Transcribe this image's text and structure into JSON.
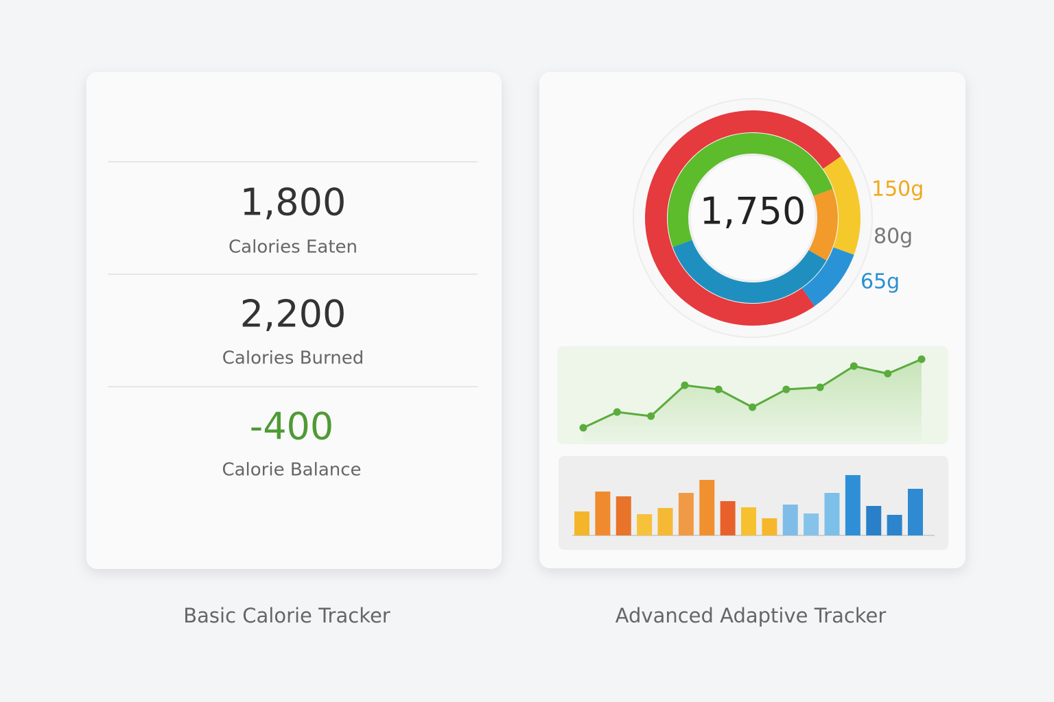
{
  "basic": {
    "stats": [
      {
        "value": "1,800",
        "label": "Calories Eaten"
      },
      {
        "value": "2,200",
        "label": "Calories Burned"
      },
      {
        "value": "-400",
        "label": "Calorie Balance"
      }
    ],
    "caption": "Basic Calorie Tracker"
  },
  "advanced": {
    "ring": {
      "center": "1,750",
      "labels": [
        "150g",
        "80g",
        "65g"
      ]
    },
    "line_chart": {
      "type": "line",
      "color": "#5aac3c",
      "values": [
        24,
        47,
        41,
        86,
        80,
        54,
        80,
        83,
        114,
        103,
        124
      ],
      "ylim": [
        0,
        143
      ]
    },
    "bar_chart": {
      "type": "bar",
      "values": [
        35,
        64,
        57,
        31,
        40,
        62,
        81,
        50,
        41,
        25,
        45,
        32,
        62,
        88,
        43,
        30,
        68
      ],
      "colors": [
        "#f5b52a",
        "#f08a2e",
        "#e8732a",
        "#f7c23a",
        "#f5b935",
        "#f09a45",
        "#f0902f",
        "#e8612a",
        "#f7c02f",
        "#f7b72a",
        "#7fbde8",
        "#86c3ea",
        "#7cc0ea",
        "#2f8fd6",
        "#2a80c8",
        "#2c84cc",
        "#2f8ad2"
      ],
      "ylim": [
        0,
        116
      ]
    },
    "caption": "Advanced Adaptive Tracker"
  }
}
